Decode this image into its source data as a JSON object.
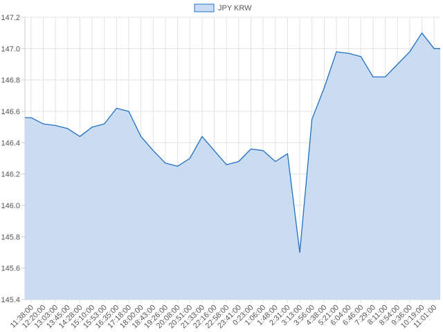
{
  "chart_data": {
    "type": "area",
    "series": [
      {
        "name": "JPY KRW",
        "color": "#1f6fc5",
        "fill": "#c9dcf1",
        "x": [
          "11:38:00",
          "12:20:00",
          "13:03:00",
          "13:45:00",
          "14:28:00",
          "15:10:00",
          "15:53:00",
          "16:35:00",
          "17:18:00",
          "18:00:00",
          "18:43:00",
          "19:26:00",
          "20:08:00",
          "20:51:00",
          "21:33:00",
          "22:16:00",
          "22:58:00",
          "23:41:00",
          "0:23:00",
          "1:06:00",
          "1:48:00",
          "2:31:00",
          "3:13:00",
          "3:56:00",
          "4:38:00",
          "5:21:00",
          "6:04:00",
          "6:46:00",
          "7:29:00",
          "8:11:00",
          "8:54:00",
          "9:36:00",
          "10:19:00",
          "11:01:00"
        ],
        "values": [
          146.56,
          146.52,
          146.51,
          146.49,
          146.44,
          146.5,
          146.52,
          146.62,
          146.6,
          146.44,
          146.35,
          146.27,
          146.25,
          146.3,
          146.44,
          146.35,
          146.26,
          146.28,
          146.36,
          146.35,
          146.28,
          146.33,
          145.7,
          146.55,
          146.75,
          146.98,
          146.97,
          146.95,
          146.82,
          146.82,
          146.9,
          146.98,
          147.1,
          147.0
        ]
      }
    ],
    "ylim": [
      145.4,
      147.2
    ],
    "yticks": [
      "145.4",
      "145.6",
      "145.8",
      "146.0",
      "146.2",
      "146.4",
      "146.6",
      "146.8",
      "147.0",
      "147.2"
    ],
    "legend": "top-center",
    "grid": true
  }
}
